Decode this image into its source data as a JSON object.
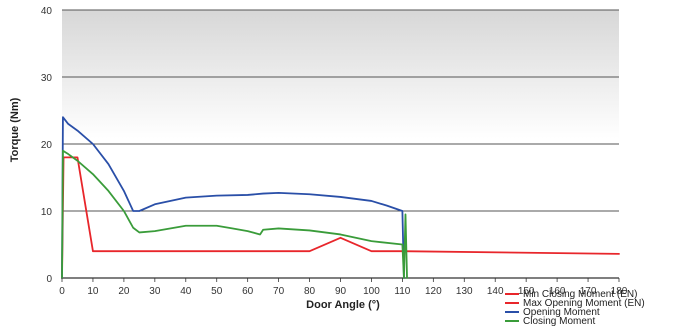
{
  "chart_data": {
    "type": "line",
    "title": "",
    "xlabel": "Door Angle (°)",
    "ylabel": "Torque (Nm)",
    "xlim": [
      0,
      180
    ],
    "ylim": [
      0,
      40
    ],
    "x_ticks": [
      0,
      10,
      20,
      30,
      40,
      50,
      60,
      70,
      80,
      90,
      100,
      110,
      120,
      130,
      140,
      150,
      160,
      170,
      180
    ],
    "y_ticks": [
      0,
      10,
      20,
      30,
      40
    ],
    "grid": "horizontal",
    "legend_position": "bottom-right",
    "series": [
      {
        "name": "Min Closing Moment (EN)",
        "color": "#e8262b",
        "points": [
          [
            0,
            0
          ],
          [
            0.5,
            18
          ],
          [
            5,
            18
          ],
          [
            10,
            4
          ],
          [
            25,
            4
          ],
          [
            80,
            4
          ],
          [
            90,
            6
          ],
          [
            100,
            4
          ],
          [
            110,
            4
          ],
          [
            180,
            3.6
          ]
        ]
      },
      {
        "name": "Max Opening Moment (EN)",
        "color": "#e8262b",
        "points": []
      },
      {
        "name": "Opening Moment",
        "color": "#2a4fa8",
        "points": [
          [
            0,
            0
          ],
          [
            0.3,
            24
          ],
          [
            2,
            23
          ],
          [
            5,
            22
          ],
          [
            10,
            20
          ],
          [
            15,
            17
          ],
          [
            20,
            13
          ],
          [
            23,
            10
          ],
          [
            25,
            10
          ],
          [
            30,
            11
          ],
          [
            40,
            12
          ],
          [
            50,
            12.3
          ],
          [
            60,
            12.4
          ],
          [
            65,
            12.6
          ],
          [
            70,
            12.7
          ],
          [
            80,
            12.5
          ],
          [
            90,
            12.1
          ],
          [
            100,
            11.5
          ],
          [
            105,
            10.8
          ],
          [
            110,
            10
          ],
          [
            110.5,
            0
          ]
        ]
      },
      {
        "name": "Closing Moment",
        "color": "#3a9c3a",
        "points": [
          [
            0,
            0
          ],
          [
            0.3,
            19
          ],
          [
            2,
            18.5
          ],
          [
            5,
            17.5
          ],
          [
            10,
            15.5
          ],
          [
            15,
            13
          ],
          [
            20,
            10
          ],
          [
            23,
            7.5
          ],
          [
            25,
            6.8
          ],
          [
            30,
            7
          ],
          [
            40,
            7.8
          ],
          [
            50,
            7.8
          ],
          [
            55,
            7.4
          ],
          [
            60,
            7
          ],
          [
            64,
            6.5
          ],
          [
            65,
            7.2
          ],
          [
            70,
            7.4
          ],
          [
            80,
            7.1
          ],
          [
            90,
            6.5
          ],
          [
            100,
            5.5
          ],
          [
            110,
            5
          ],
          [
            110.5,
            0
          ],
          [
            111,
            9.5
          ],
          [
            111.5,
            0
          ]
        ]
      }
    ]
  }
}
